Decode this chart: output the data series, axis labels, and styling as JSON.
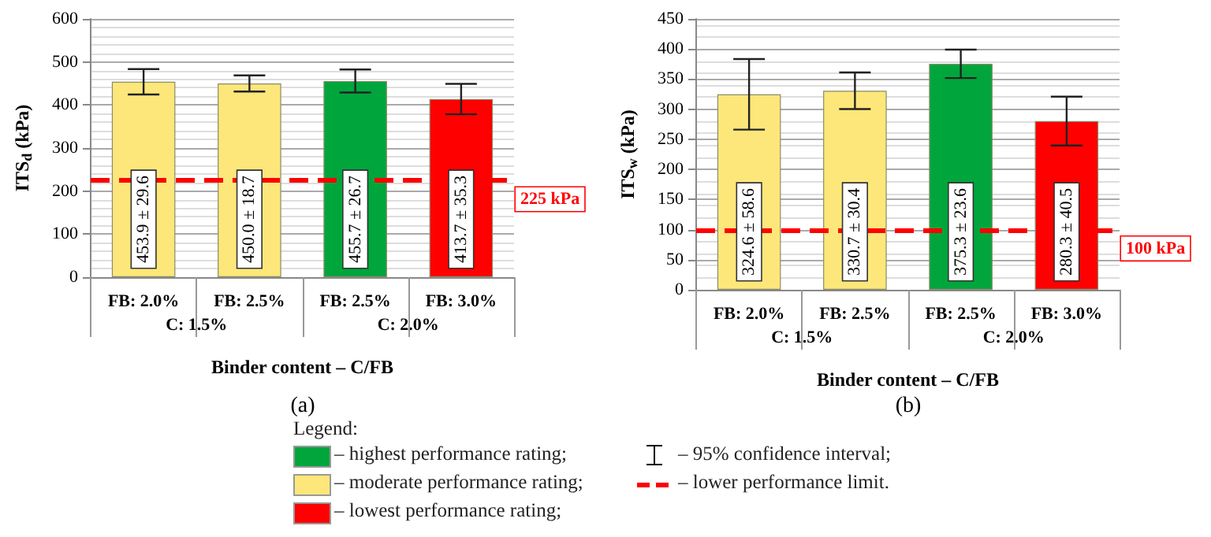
{
  "chart_data": [
    {
      "type": "bar",
      "title": "(a)",
      "xlabel": "Binder content – C/FB",
      "ylabel": "ITS$_{d}$ (kPa)",
      "categories": [
        "FB: 2.0%",
        "FB: 2.5%",
        "FB: 2.5%",
        "FB: 3.0%"
      ],
      "annotations": [
        "C: 1.5%",
        "C: 2.0%"
      ],
      "values": [
        453.9,
        450.0,
        455.7,
        413.7
      ],
      "errors": [
        29.6,
        18.7,
        26.7,
        35.3
      ],
      "value_labels": [
        "453.9 ± 29.6",
        "450.0 ± 18.7",
        "455.7 ± 26.7",
        "413.7 ± 35.3"
      ],
      "colors": [
        "#fde77a",
        "#fde77a",
        "#00a63c",
        "#ff0000"
      ],
      "ylim": [
        0,
        600
      ],
      "yticks": [
        0,
        100,
        200,
        300,
        400,
        500,
        600
      ],
      "grid": "y",
      "ref_lines": [
        {
          "axis": "y",
          "value": 225,
          "label": "225 kPa",
          "color": "#ff0000",
          "line_style": "dashed"
        }
      ]
    },
    {
      "type": "bar",
      "title": "(b)",
      "xlabel": "Binder content – C/FB",
      "ylabel": "ITS$_{w}$ (kPa)",
      "categories": [
        "FB: 2.0%",
        "FB: 2.5%",
        "FB: 2.5%",
        "FB: 3.0%"
      ],
      "annotations": [
        "C: 1.5%",
        "C: 2.0%"
      ],
      "values": [
        324.6,
        330.7,
        375.3,
        280.3
      ],
      "errors": [
        58.6,
        30.4,
        23.6,
        40.5
      ],
      "value_labels": [
        "324.6 ± 58.6",
        "330.7 ± 30.4",
        "375.3 ± 23.6",
        "280.3 ± 40.5"
      ],
      "colors": [
        "#fde77a",
        "#fde77a",
        "#00a63c",
        "#ff0000"
      ],
      "ylim": [
        0,
        450
      ],
      "yticks": [
        0,
        50,
        100,
        150,
        200,
        250,
        300,
        350,
        400,
        450
      ],
      "grid": "y",
      "ref_lines": [
        {
          "axis": "y",
          "value": 100,
          "label": "100 kPa",
          "color": "#ff0000",
          "line_style": "dashed"
        }
      ]
    },
    {
      "type": "other",
      "legend_title": "Legend:",
      "annotations": [
        "– highest performance rating;",
        "– moderate performance rating;",
        "– lowest performance rating;",
        "– 95% confidence interval;",
        "– lower performance limit."
      ],
      "colors": [
        "#00a63c",
        "#fde77a",
        "#ff0000",
        "#000000",
        "#ff0000"
      ]
    }
  ]
}
